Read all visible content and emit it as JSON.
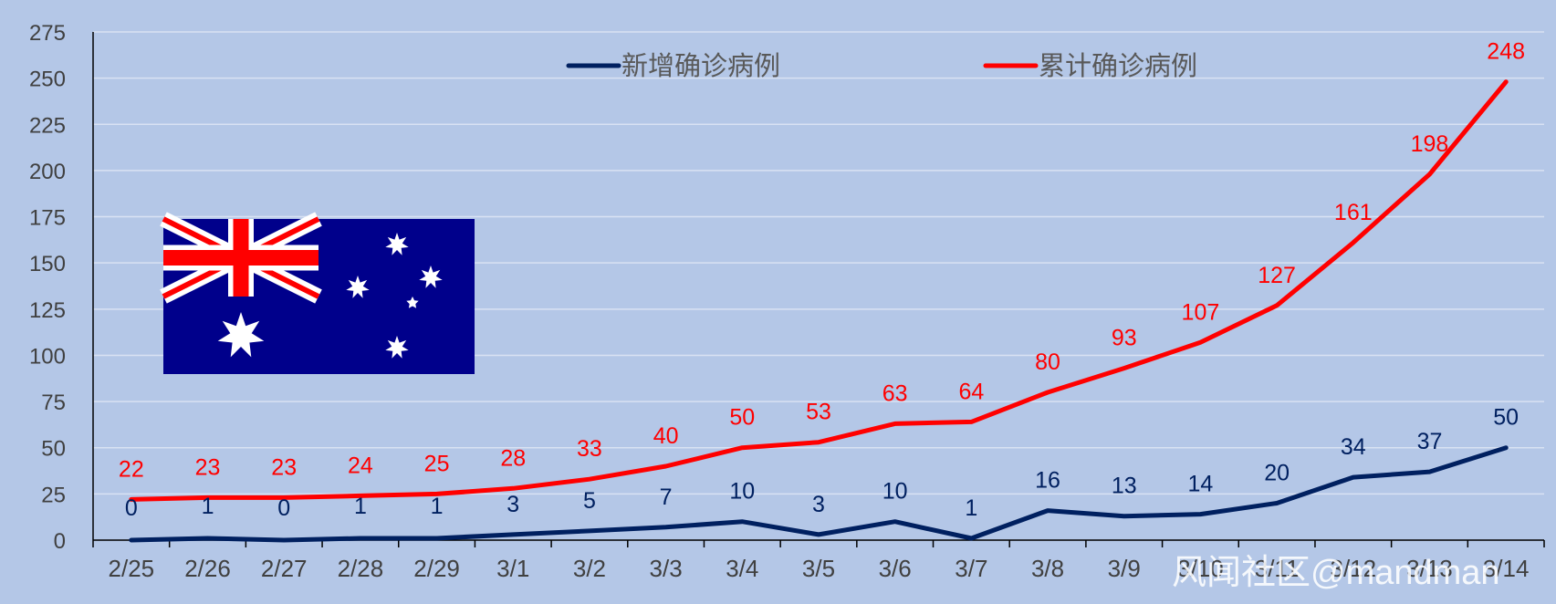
{
  "chart_data": {
    "type": "line",
    "categories": [
      "2/25",
      "2/26",
      "2/27",
      "2/28",
      "2/29",
      "3/1",
      "3/2",
      "3/3",
      "3/4",
      "3/5",
      "3/6",
      "3/7",
      "3/8",
      "3/9",
      "3/10",
      "3/11",
      "3/12",
      "3/13",
      "3/14"
    ],
    "series": [
      {
        "name": "新增确诊病例",
        "values": [
          0,
          1,
          0,
          1,
          1,
          3,
          5,
          7,
          10,
          3,
          10,
          1,
          16,
          13,
          14,
          20,
          34,
          37,
          50
        ],
        "color": "#002060"
      },
      {
        "name": "累计确诊病例",
        "values": [
          22,
          23,
          23,
          24,
          25,
          28,
          33,
          40,
          50,
          53,
          63,
          64,
          80,
          93,
          107,
          127,
          161,
          198,
          248
        ],
        "color": "#ff0000"
      }
    ],
    "yticks": [
      0,
      25,
      50,
      75,
      100,
      125,
      150,
      175,
      200,
      225,
      250,
      275
    ],
    "ylim": [
      0,
      275
    ],
    "grid": true,
    "legend_position": "top",
    "data_labels": true
  },
  "flag": {
    "name": "australia-flag",
    "colors": {
      "field": "#00008b",
      "cross": "#ff0000",
      "white": "#ffffff"
    }
  },
  "watermark": "风闻社区@mandman"
}
